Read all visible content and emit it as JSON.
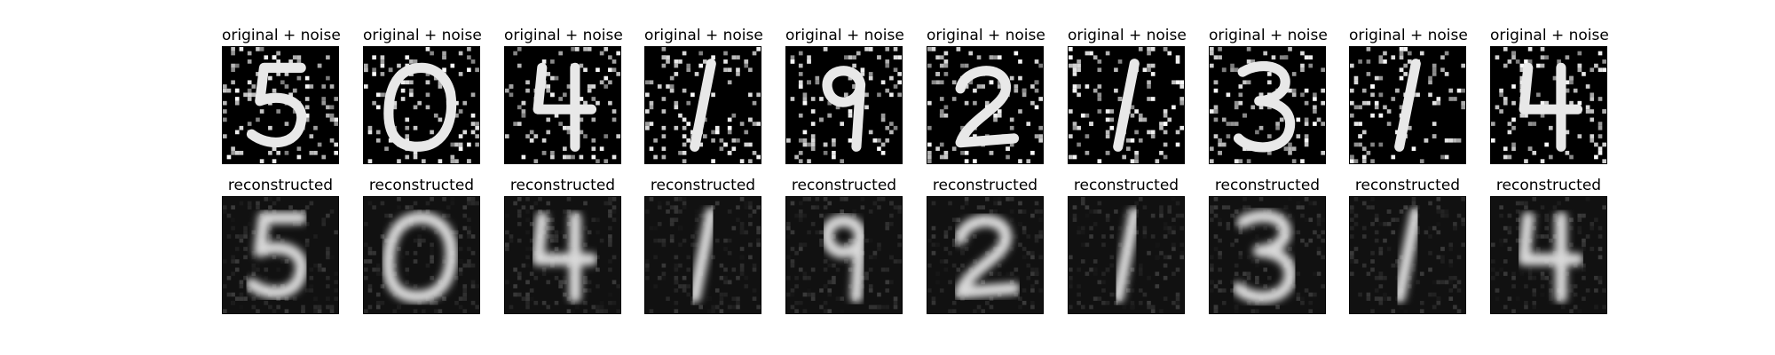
{
  "rows": [
    {
      "row_id": "noisy",
      "title": "original + noise",
      "digits": [
        "5",
        "0",
        "4",
        "1",
        "9",
        "2",
        "1",
        "3",
        "1",
        "4"
      ]
    },
    {
      "row_id": "reconstructed",
      "title": "reconstructed",
      "digits": [
        "5",
        "0",
        "4",
        "1",
        "9",
        "2",
        "1",
        "3",
        "1",
        "4"
      ]
    }
  ],
  "colors": {
    "background": "#ffffff",
    "panel": "#000000",
    "stroke": "#ffffff"
  }
}
